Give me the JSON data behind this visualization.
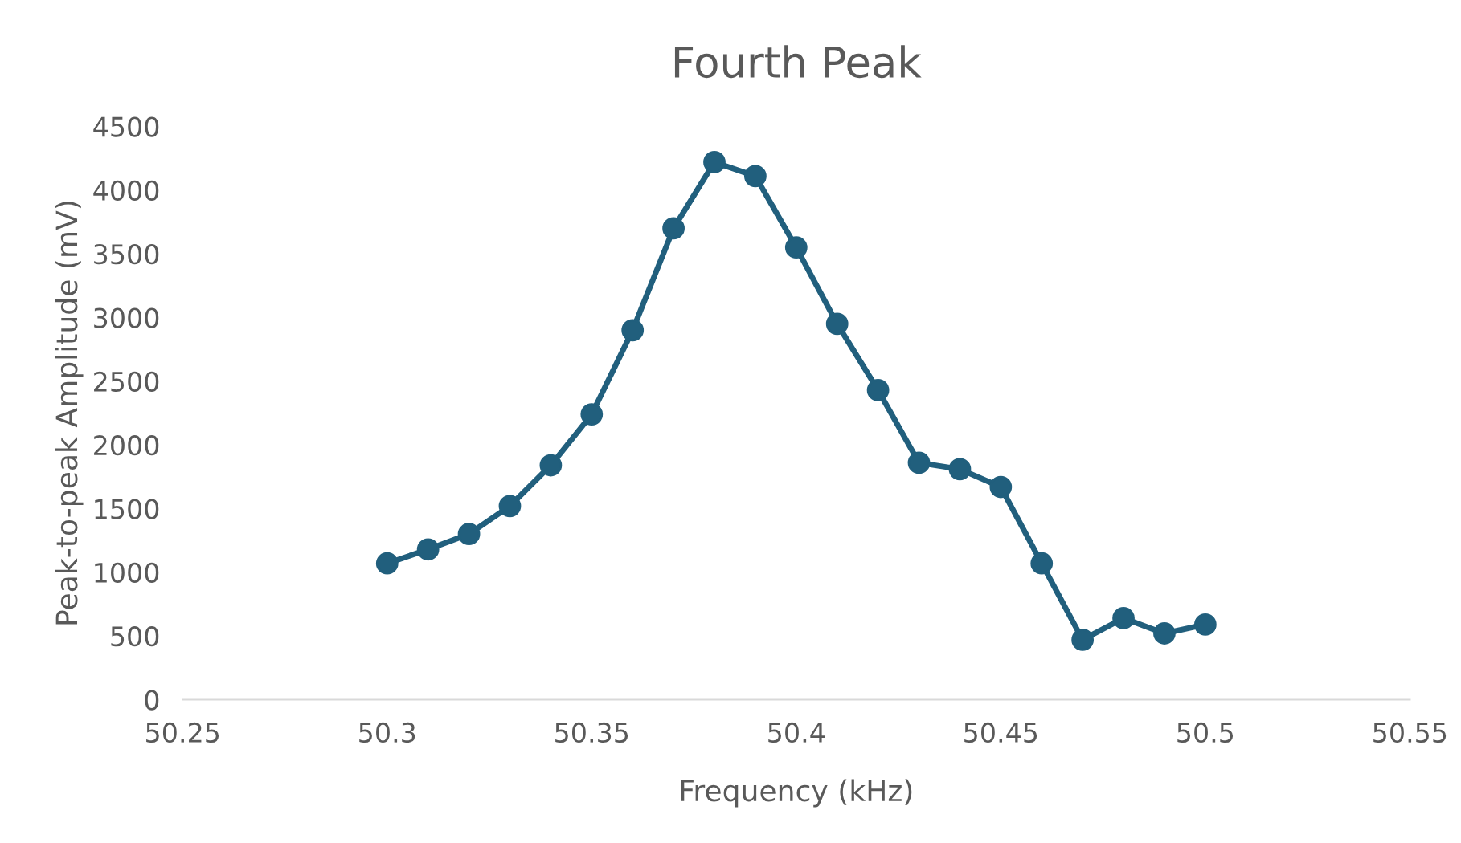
{
  "chart_data": {
    "type": "line",
    "title": "Fourth Peak",
    "xlabel": "Frequency (kHz)",
    "ylabel": "Peak-to-peak Amplitude (mV)",
    "x": [
      50.3,
      50.31,
      50.32,
      50.33,
      50.34,
      50.35,
      50.36,
      50.37,
      50.38,
      50.39,
      50.4,
      50.41,
      50.42,
      50.43,
      50.44,
      50.45,
      50.46,
      50.47,
      50.48,
      50.49,
      50.5
    ],
    "series": [
      {
        "color": "#215f7d",
        "values": [
          1070,
          1180,
          1300,
          1520,
          1840,
          2240,
          2900,
          3700,
          4220,
          4110,
          3550,
          2950,
          2430,
          1860,
          1810,
          1670,
          1070,
          470,
          640,
          520,
          590
        ]
      }
    ],
    "xlim": [
      50.25,
      50.55
    ],
    "xticks": [
      50.25,
      50.3,
      50.35,
      50.4,
      50.45,
      50.5,
      50.55
    ],
    "ylim": [
      0,
      4500
    ],
    "yticks": [
      0,
      500,
      1000,
      1500,
      2000,
      2500,
      3000,
      3500,
      4000,
      4500
    ],
    "grid": false,
    "legend": false,
    "marker": "circle",
    "line_style": "solid"
  }
}
